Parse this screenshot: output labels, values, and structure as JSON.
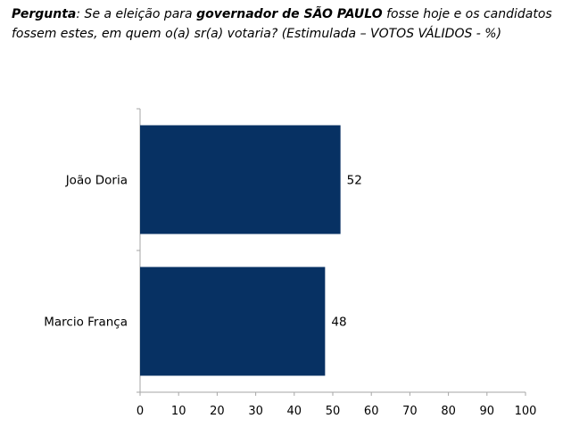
{
  "question": {
    "lead": "Pergunta",
    "sep": ":",
    "part1": " Se a eleição para ",
    "highlight": "governador de SÃO PAULO",
    "part2": " fosse hoje e os candidatos fossem estes, em quem o(a) sr(a) votaria? (Estimulada – VOTOS VÁLIDOS - %)"
  },
  "colors": {
    "bar": "#073163",
    "axis": "#a6a6a6"
  },
  "chart_data": {
    "type": "bar",
    "orientation": "horizontal",
    "categories": [
      "João Doria",
      "Marcio França"
    ],
    "values": [
      52,
      48
    ],
    "data_labels": [
      "52",
      "48"
    ],
    "xlim": [
      0,
      100
    ],
    "xticks": [
      0,
      10,
      20,
      30,
      40,
      50,
      60,
      70,
      80,
      90,
      100
    ],
    "grid": false,
    "legend": "none"
  }
}
